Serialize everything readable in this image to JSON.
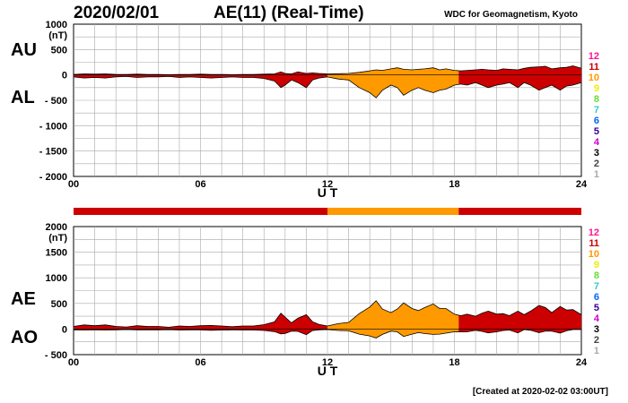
{
  "header": {
    "date": "2020/02/01",
    "title": "AE(11) (Real-Time)",
    "credit": "WDC for Geomagnetism, Kyoto",
    "created": "[Created at 2020-02-02 03:00UT]"
  },
  "legend": {
    "labels": [
      "12",
      "11",
      "10",
      "9",
      "8",
      "7",
      "6",
      "5",
      "4",
      "3",
      "2",
      "1"
    ],
    "colors": [
      "#ff1493",
      "#cc0000",
      "#ff9900",
      "#eeee00",
      "#66dd33",
      "#33cccc",
      "#0066ff",
      "#330099",
      "#cc00cc",
      "#000000",
      "#444444",
      "#aaaaaa"
    ]
  },
  "station_count_bar": {
    "segments": [
      {
        "start_hour": 0,
        "end_hour": 12,
        "stations": 11
      },
      {
        "start_hour": 12,
        "end_hour": 18.2,
        "stations": 10
      },
      {
        "start_hour": 18.2,
        "end_hour": 24,
        "stations": 11
      }
    ]
  },
  "chart_data": [
    {
      "type": "area",
      "side_labels": [
        "AU",
        "AL"
      ],
      "unit": "(nT)",
      "xlabel": "U T",
      "xticks": [
        "00",
        "06",
        "12",
        "18",
        "24"
      ],
      "xlim": [
        0,
        24
      ],
      "ylim": [
        -2000,
        1000
      ],
      "yticks": [
        1000,
        500,
        0,
        -500,
        -1000,
        -1500,
        -2000
      ],
      "ytick_labels": [
        "1000",
        "500",
        "0",
        "- 500",
        "- 1000",
        "- 1500",
        "- 2000"
      ],
      "grid": true,
      "x_hours": [
        0,
        0.5,
        1,
        1.5,
        2,
        2.5,
        3,
        3.5,
        4,
        4.5,
        5,
        5.5,
        6,
        6.5,
        7,
        7.5,
        8,
        8.5,
        9,
        9.5,
        9.8,
        10,
        10.3,
        10.6,
        11,
        11.3,
        11.6,
        12,
        12.5,
        13,
        13.5,
        14,
        14.3,
        14.6,
        15,
        15.3,
        15.6,
        16,
        16.3,
        16.6,
        17,
        17.3,
        17.6,
        18,
        18.3,
        18.6,
        19,
        19.3,
        19.6,
        20,
        20.3,
        20.6,
        21,
        21.3,
        21.6,
        22,
        22.3,
        22.6,
        23,
        23.3,
        23.6,
        24
      ],
      "series": [
        {
          "values": [
            10,
            20,
            15,
            20,
            10,
            10,
            15,
            10,
            10,
            5,
            10,
            10,
            15,
            10,
            10,
            5,
            10,
            10,
            15,
            20,
            60,
            30,
            20,
            60,
            30,
            40,
            30,
            20,
            25,
            30,
            50,
            80,
            100,
            90,
            120,
            140,
            110,
            100,
            110,
            120,
            140,
            100,
            120,
            90,
            80,
            90,
            100,
            110,
            100,
            90,
            120,
            110,
            100,
            130,
            150,
            160,
            170,
            120,
            140,
            150,
            180,
            130
          ]
        },
        {
          "values": [
            -40,
            -60,
            -50,
            -60,
            -40,
            -30,
            -50,
            -40,
            -40,
            -30,
            -50,
            -40,
            -50,
            -60,
            -50,
            -40,
            -50,
            -50,
            -70,
            -120,
            -250,
            -200,
            -100,
            -150,
            -250,
            -100,
            -60,
            -40,
            -80,
            -100,
            -250,
            -350,
            -450,
            -300,
            -200,
            -250,
            -400,
            -300,
            -250,
            -300,
            -350,
            -300,
            -280,
            -200,
            -180,
            -200,
            -150,
            -200,
            -250,
            -200,
            -180,
            -150,
            -250,
            -150,
            -200,
            -300,
            -250,
            -200,
            -300,
            -220,
            -200,
            -150
          ]
        }
      ]
    },
    {
      "type": "area",
      "side_labels": [
        "AE",
        "AO"
      ],
      "unit": "(nT)",
      "xlabel": "U T",
      "xticks": [
        "00",
        "06",
        "12",
        "18",
        "24"
      ],
      "xlim": [
        0,
        24
      ],
      "ylim": [
        -500,
        2000
      ],
      "yticks": [
        2000,
        1500,
        1000,
        500,
        0,
        -500
      ],
      "ytick_labels": [
        "2000",
        "1500",
        "1000",
        "500",
        "0",
        "- 500"
      ],
      "grid": true,
      "x_hours": [
        0,
        0.5,
        1,
        1.5,
        2,
        2.5,
        3,
        3.5,
        4,
        4.5,
        5,
        5.5,
        6,
        6.5,
        7,
        7.5,
        8,
        8.5,
        9,
        9.5,
        9.8,
        10,
        10.3,
        10.6,
        11,
        11.3,
        11.6,
        12,
        12.5,
        13,
        13.5,
        14,
        14.3,
        14.6,
        15,
        15.3,
        15.6,
        16,
        16.3,
        16.6,
        17,
        17.3,
        17.6,
        18,
        18.3,
        18.6,
        19,
        19.3,
        19.6,
        20,
        20.3,
        20.6,
        21,
        21.3,
        21.6,
        22,
        22.3,
        22.6,
        23,
        23.3,
        23.6,
        24
      ],
      "series": [
        {
          "values": [
            50,
            80,
            65,
            80,
            50,
            40,
            65,
            50,
            50,
            35,
            60,
            50,
            65,
            70,
            60,
            45,
            60,
            60,
            85,
            140,
            310,
            230,
            120,
            210,
            280,
            140,
            90,
            60,
            105,
            130,
            300,
            430,
            550,
            390,
            320,
            390,
            510,
            400,
            360,
            420,
            490,
            400,
            400,
            290,
            260,
            290,
            250,
            310,
            350,
            290,
            300,
            260,
            350,
            280,
            350,
            460,
            420,
            320,
            440,
            370,
            380,
            280
          ]
        },
        {
          "values": [
            -15,
            -20,
            -18,
            -20,
            -15,
            -10,
            -18,
            -15,
            -15,
            -12,
            -20,
            -15,
            -18,
            -25,
            -20,
            -18,
            -20,
            -20,
            -28,
            -50,
            -95,
            -85,
            -40,
            -45,
            -110,
            -30,
            -15,
            -10,
            -28,
            -35,
            -100,
            -135,
            -175,
            -105,
            -40,
            -55,
            -145,
            -100,
            -70,
            -90,
            -105,
            -100,
            -80,
            -55,
            -50,
            -55,
            -25,
            -45,
            -75,
            -55,
            -30,
            -20,
            -75,
            -10,
            -25,
            -70,
            -40,
            -40,
            -80,
            -35,
            -10,
            -10
          ]
        }
      ]
    }
  ]
}
